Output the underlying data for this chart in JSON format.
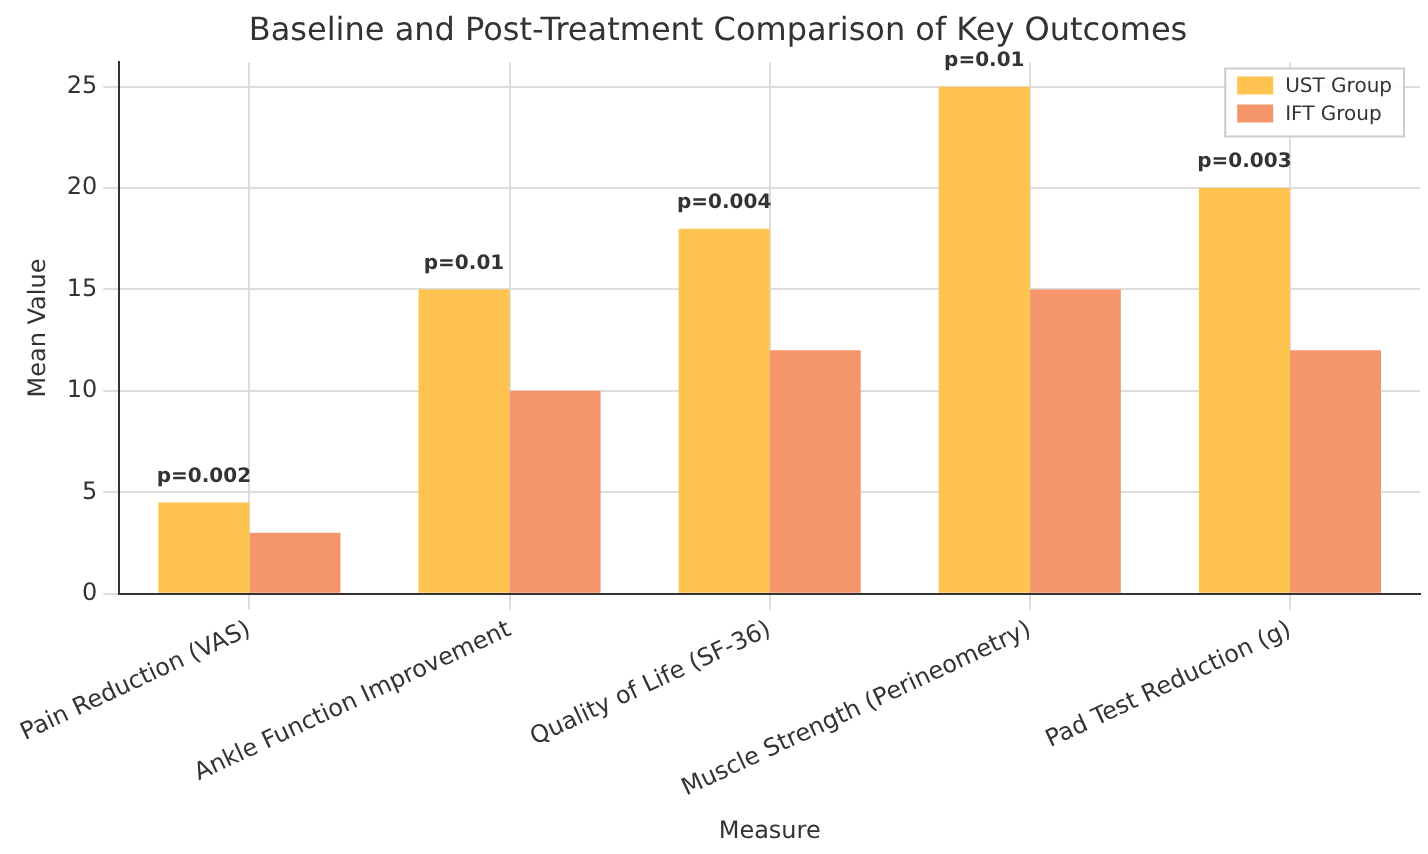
{
  "chart_data": {
    "type": "bar",
    "title": "Baseline and Post-Treatment Comparison of Key Outcomes",
    "xlabel": "Measure",
    "ylabel": "Mean Value",
    "categories": [
      "Pain Reduction (VAS)",
      "Ankle Function Improvement",
      "Quality of Life (SF-36)",
      "Muscle Strength (Perineometry)",
      "Pad Test Reduction (g)"
    ],
    "series": [
      {
        "name": "UST Group",
        "color": "#fec44f",
        "values": [
          4.5,
          15,
          18,
          25,
          20
        ]
      },
      {
        "name": "IFT Group",
        "color": "#f4956a",
        "values": [
          3,
          10,
          12,
          15,
          12
        ]
      }
    ],
    "ylim": [
      0,
      26.2
    ],
    "yticks": [
      0,
      5,
      10,
      15,
      20,
      25
    ],
    "grid": true,
    "legend": "top right",
    "annotations": [
      {
        "text": "p=0.002",
        "x": "Pain Reduction (VAS)",
        "y": 4.5
      },
      {
        "text": "p=0.01",
        "x": "Ankle Function Improvement",
        "y": 15
      },
      {
        "text": "p=0.004",
        "x": "Quality of Life (SF-36)",
        "y": 18
      },
      {
        "text": "p=0.01",
        "x": "Muscle Strength (Perineometry)",
        "y": 25
      },
      {
        "text": "p=0.003",
        "x": "Pad Test Reduction (g)",
        "y": 20
      }
    ]
  }
}
